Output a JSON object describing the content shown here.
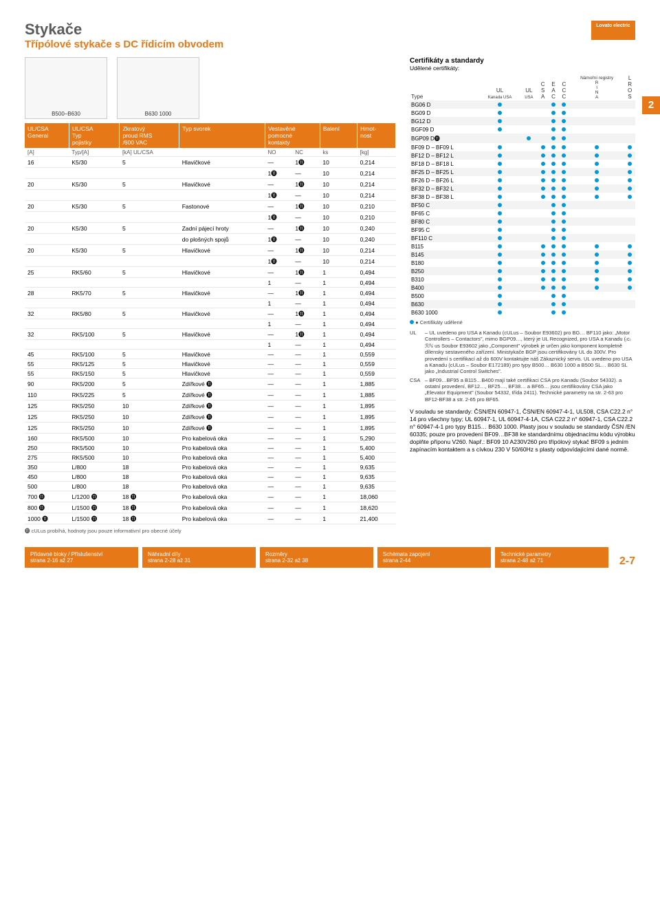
{
  "header": {
    "title1": "Stykače",
    "title2": "Třípólové stykače s DC řídicím obvodem",
    "logo": "Lovato electric"
  },
  "side_tab": "2",
  "images": {
    "left_cap": "B500–B630",
    "right_cap": "B630 1000"
  },
  "main_headers": {
    "c1a": "UL/CSA",
    "c1b": "General",
    "c2a": "UL/CSA",
    "c2b": "Typ",
    "c2c": "pojistky",
    "c3a": "Zkratový",
    "c3b": "proud RMS",
    "c3c": "/600 VAC",
    "c4": "Typ svorek",
    "c5a": "Vestavěné",
    "c5b": "pomocné",
    "c5c": "kontakty",
    "c6": "Balení",
    "c7a": "Hmot-",
    "c7b": "nost"
  },
  "sub_headers": {
    "c1": "[A]",
    "c2": "Typ/[A]",
    "c3": "[kA] UL/CSA",
    "c5a": "NO",
    "c5b": "NC",
    "c6": "ks",
    "c7": "[kg]"
  },
  "main_rows": [
    [
      "16",
      "K5/30",
      "5",
      "Hlavičkové",
      "—",
      "1⓫",
      "10",
      "0,214"
    ],
    [
      "",
      "",
      "",
      "",
      "1⓫",
      "—",
      "10",
      "0,214"
    ],
    [
      "20",
      "K5/30",
      "5",
      "Hlavičkové",
      "—",
      "1⓫",
      "10",
      "0,214"
    ],
    [
      "",
      "",
      "",
      "",
      "1⓫",
      "—",
      "10",
      "0,214"
    ],
    [
      "20",
      "K5/30",
      "5",
      "Fastonové",
      "—",
      "1⓫",
      "10",
      "0,210"
    ],
    [
      "",
      "",
      "",
      "",
      "1⓫",
      "—",
      "10",
      "0,210"
    ],
    [
      "20",
      "K5/30",
      "5",
      "Zadní pájecí hroty",
      "—",
      "1⓫",
      "10",
      "0,240"
    ],
    [
      "",
      "",
      "",
      "do plošných spojů",
      "1⓫",
      "—",
      "10",
      "0,240"
    ],
    [
      "20",
      "K5/30",
      "5",
      "Hlavičkové",
      "—",
      "1⓫",
      "10",
      "0,214"
    ],
    [
      "",
      "",
      "",
      "",
      "1⓫",
      "—",
      "10",
      "0,214"
    ],
    [
      "25",
      "RK5/60",
      "5",
      "Hlavičkové",
      "—",
      "1⓫",
      "1",
      "0,494"
    ],
    [
      "",
      "",
      "",
      "",
      "1",
      "—",
      "1",
      "0,494"
    ],
    [
      "28",
      "RK5/70",
      "5",
      "Hlavičkové",
      "—",
      "1⓫",
      "1",
      "0,494"
    ],
    [
      "",
      "",
      "",
      "",
      "1",
      "—",
      "1",
      "0,494"
    ],
    [
      "32",
      "RK5/80",
      "5",
      "Hlavičkové",
      "—",
      "1⓫",
      "1",
      "0,494"
    ],
    [
      "",
      "",
      "",
      "",
      "1",
      "—",
      "1",
      "0,494"
    ],
    [
      "32",
      "RK5/100",
      "5",
      "Hlavičkové",
      "—",
      "1⓫",
      "1",
      "0,494"
    ],
    [
      "",
      "",
      "",
      "",
      "1",
      "—",
      "1",
      "0,494"
    ],
    [
      "45",
      "RK5/100",
      "5",
      "Hlavičkové",
      "—",
      "—",
      "1",
      "0,559"
    ],
    [
      "55",
      "RK5/125",
      "5",
      "Hlavičkové",
      "—",
      "—",
      "1",
      "0,559"
    ],
    [
      "55",
      "RK5/150",
      "5",
      "Hlavičkové",
      "—",
      "—",
      "1",
      "0,559"
    ],
    [
      "90",
      "RK5/200",
      "5",
      "Zdířkové ⓫",
      "—",
      "—",
      "1",
      "1,885"
    ],
    [
      "110",
      "RK5/225",
      "5",
      "Zdířkové ⓫",
      "—",
      "—",
      "1",
      "1,885"
    ],
    [
      "125",
      "RK5/250",
      "10",
      "Zdířkové ⓫",
      "—",
      "—",
      "1",
      "1,895"
    ],
    [
      "125",
      "RK5/250",
      "10",
      "Zdířkové ⓫",
      "—",
      "—",
      "1",
      "1,895"
    ],
    [
      "125",
      "RK5/250",
      "10",
      "Zdířkové ⓫",
      "—",
      "—",
      "1",
      "1,895"
    ],
    [
      "160",
      "RK5/500",
      "10",
      "Pro kabelová oka",
      "—",
      "—",
      "1",
      "5,290"
    ],
    [
      "250",
      "RK5/500",
      "10",
      "Pro kabelová oka",
      "—",
      "—",
      "1",
      "5,400"
    ],
    [
      "275",
      "RK5/500",
      "10",
      "Pro kabelová oka",
      "—",
      "—",
      "1",
      "5,400"
    ],
    [
      "350",
      "L/800",
      "18",
      "Pro kabelová oka",
      "—",
      "—",
      "1",
      "9,635"
    ],
    [
      "450",
      "L/800",
      "18",
      "Pro kabelová oka",
      "—",
      "—",
      "1",
      "9,635"
    ],
    [
      "500",
      "L/800",
      "18",
      "Pro kabelová oka",
      "—",
      "—",
      "1",
      "9,635"
    ],
    [
      "700 ⓫",
      "L/1200 ⓫",
      "18 ⓫",
      "Pro kabelová oka",
      "—",
      "—",
      "1",
      "18,060"
    ],
    [
      "800 ⓫",
      "L/1500 ⓫",
      "18 ⓫",
      "Pro kabelová oka",
      "—",
      "—",
      "1",
      "18,620"
    ],
    [
      "1000 ⓫",
      "L/1500 ⓫",
      "18 ⓫",
      "Pro kabelová oka",
      "—",
      "—",
      "1",
      "21,400"
    ]
  ],
  "footnote": "⓫ cULus probíhá, hodnoty jsou pouze informativní pro obecné účely",
  "cert": {
    "title": "Certifikáty a standardy",
    "sub": "Udělené certifikáty:",
    "legend": "● Certifikáty udělené",
    "cols": {
      "type": "Type",
      "ul_can": "UL",
      "ul_can2": "Kanada USA",
      "ul_usa": "UL",
      "ul_usa2": "USA",
      "csa": "C\nS\nA",
      "eac": "E\nA\nC",
      "ccc": "C\nC\nC",
      "rina": "Námořní registry\nR\nI\nN\nA",
      "lros": "L\nR\nO\nS"
    },
    "rows": [
      [
        "BG06 D",
        1,
        0,
        0,
        1,
        1,
        0,
        0
      ],
      [
        "BG09 D",
        1,
        0,
        0,
        1,
        1,
        0,
        0
      ],
      [
        "BG12 D",
        1,
        0,
        0,
        1,
        1,
        0,
        0
      ],
      [
        "BGF09 D",
        1,
        0,
        0,
        1,
        1,
        0,
        0
      ],
      [
        "BGP09 D⓫",
        0,
        1,
        0,
        1,
        1,
        0,
        0
      ],
      [
        "BF09 D – BF09 L",
        1,
        0,
        1,
        1,
        1,
        1,
        1
      ],
      [
        "BF12 D – BF12 L",
        1,
        0,
        1,
        1,
        1,
        1,
        1
      ],
      [
        "BF18 D – BF18 L",
        1,
        0,
        1,
        1,
        1,
        1,
        1
      ],
      [
        "BF25 D – BF25 L",
        1,
        0,
        1,
        1,
        1,
        1,
        1
      ],
      [
        "BF26 D – BF26 L",
        1,
        0,
        1,
        1,
        1,
        1,
        1
      ],
      [
        "BF32 D – BF32 L",
        1,
        0,
        1,
        1,
        1,
        1,
        1
      ],
      [
        "BF38 D – BF38 L",
        1,
        0,
        1,
        1,
        1,
        1,
        1
      ],
      [
        "BF50 C",
        1,
        0,
        0,
        1,
        1,
        0,
        0
      ],
      [
        "BF65 C",
        1,
        0,
        0,
        1,
        1,
        0,
        0
      ],
      [
        "BF80 C",
        1,
        0,
        0,
        1,
        1,
        0,
        0
      ],
      [
        "BF95 C",
        1,
        0,
        0,
        1,
        1,
        0,
        0
      ],
      [
        "BF110 C",
        1,
        0,
        0,
        1,
        1,
        0,
        0
      ],
      [
        "B115",
        1,
        0,
        1,
        1,
        1,
        1,
        1
      ],
      [
        "B145",
        1,
        0,
        1,
        1,
        1,
        1,
        1
      ],
      [
        "B180",
        1,
        0,
        1,
        1,
        1,
        1,
        1
      ],
      [
        "B250",
        1,
        0,
        1,
        1,
        1,
        1,
        1
      ],
      [
        "B310",
        1,
        0,
        1,
        1,
        1,
        1,
        1
      ],
      [
        "B400",
        1,
        0,
        1,
        1,
        1,
        1,
        1
      ],
      [
        "B500",
        1,
        0,
        0,
        1,
        1,
        0,
        0
      ],
      [
        "B630",
        1,
        0,
        0,
        1,
        1,
        0,
        0
      ],
      [
        "B630 1000",
        1,
        0,
        0,
        1,
        1,
        0,
        0
      ]
    ]
  },
  "notes": {
    "ul_lbl": "UL",
    "ul_txt": "– UL uvedeno pro USA a Kanadu (cULus – Soubor E93602) pro BG… BF110 jako: „Motor Controllers – Contactors\", mimo BGP09…, který je UL Recognized, pro USA a Kanadu (₍c₎ℛℕ us Soubor E93602 jako „Component\" výrobek je určen jako komponent kompletně dílensky sestaveného zařízení. Ministykače BGP jsou certifikovány UL do 300V. Pro provedení s certifikací až do 600V kontaktujte náš Zákaznický servis. UL uvedeno pro USA a Kanadu (cULus – Soubor E172189) pro typy B500… B630 1000 a B500 SL… B630 SL jako „Industrial Control Switches\".",
    "csa_lbl": "CSA",
    "csa_txt": "– BF09…BF95 a B115…B400 mají také certifikaci CSA pro Kanadu (Soubor 54332). a ostatní provedení, BF12…, BF25…, BF38… a BF65… jsou certifikovány CSA jako „Elevator Equipment\" (Soubor 54332, třída 2411). Technické parametry na str. 2-63 pro BF12-BF38 a str. 2-65 pro BF65.",
    "block": "V souladu se standardy: ČSN/EN 60947-1, ČSN/EN 60947-4-1, UL508, CSA C22.2 n° 14 pro všechny typy; UL 60947-1, UL 60947-4-1A, CSA C22.2 n° 60947-1, CSA C22.2 n° 60947-4-1 pro typy B115… B630 1000. Plasty jsou v souladu se standardy ČSN /EN 60335; pouze pro provedení BF09…BF38 ke standardnímu objednacímu kódu výrobku doplňte příponu V260. Např.: BF09 10 A230V260 pro třípólový stykač BF09 s jedním zapínacím kontaktem a s cívkou 230 V 50/60Hz s plasty odpovídajícími dané normě."
  },
  "footer": {
    "c1a": "Přídavné bloky / Příslušenství",
    "c1b": "strana 2-16 až 27",
    "c2a": "Náhradní díly",
    "c2b": "strana 2-28 až 31",
    "c3a": "Rozměry",
    "c3b": "strana 2-32 až 38",
    "c4a": "Schémata zapojení",
    "c4b": "strana 2-44",
    "c5a": "Technické parametry",
    "c5b": "strana 2-48 až 71",
    "page": "2-7"
  }
}
